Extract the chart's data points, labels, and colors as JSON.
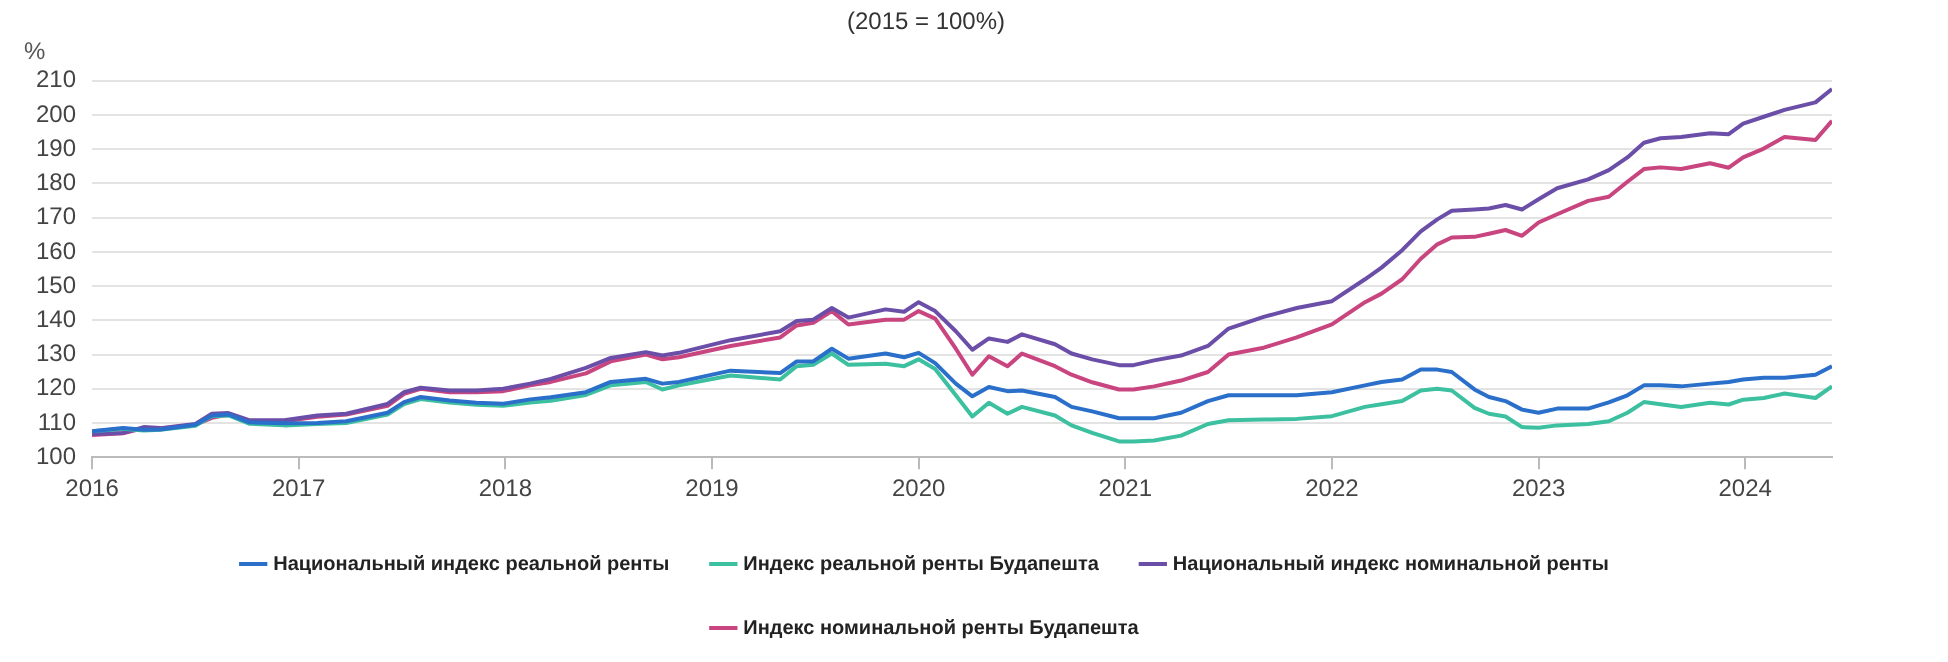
{
  "chart_data": {
    "type": "line",
    "title": "(2015 = 100%)",
    "ylabel": "%",
    "x": [
      2016.0,
      2016.15,
      2016.25,
      2016.33,
      2016.5,
      2016.58,
      2016.66,
      2016.76,
      2016.93,
      2017.09,
      2017.23,
      2017.43,
      2017.51,
      2017.59,
      2017.73,
      2017.86,
      2017.99,
      2018.12,
      2018.22,
      2018.39,
      2018.51,
      2018.68,
      2018.76,
      2018.84,
      2019.09,
      2019.33,
      2019.41,
      2019.49,
      2019.58,
      2019.66,
      2019.84,
      2019.93,
      2020.0,
      2020.08,
      2020.18,
      2020.26,
      2020.34,
      2020.43,
      2020.5,
      2020.66,
      2020.74,
      2020.84,
      2020.97,
      2021.04,
      2021.14,
      2021.27,
      2021.4,
      2021.5,
      2021.67,
      2021.83,
      2022.0,
      2022.16,
      2022.24,
      2022.34,
      2022.43,
      2022.51,
      2022.58,
      2022.69,
      2022.76,
      2022.84,
      2022.92,
      2023.0,
      2023.09,
      2023.24,
      2023.34,
      2023.43,
      2023.51,
      2023.59,
      2023.69,
      2023.83,
      2023.92,
      2023.99,
      2024.09,
      2024.19,
      2024.34,
      2024.42
    ],
    "series": [
      {
        "name": "Национальный индекс реальной ренты",
        "color": "#2a6fc9",
        "values": [
          107.6,
          108.5,
          108,
          108.1,
          109.5,
          112.2,
          112.5,
          110.2,
          109.9,
          110,
          110.5,
          113,
          116.1,
          117.6,
          116.6,
          115.9,
          115.6,
          116.9,
          117.5,
          119,
          122,
          122.9,
          121.5,
          122,
          125.3,
          124.6,
          128,
          128,
          131.7,
          128.8,
          130.3,
          129.2,
          130.5,
          127.5,
          121.5,
          117.8,
          120.5,
          119.3,
          119.5,
          117.6,
          114.7,
          113.4,
          111.4,
          111.4,
          111.4,
          113,
          116.4,
          118.1,
          118.1,
          118.1,
          119,
          121,
          122,
          122.7,
          125.6,
          125.6,
          124.9,
          119.8,
          117.6,
          116.4,
          113.9,
          113,
          114.2,
          114.2,
          116,
          118.1,
          121,
          121,
          120.7,
          121.5,
          122,
          122.7,
          123.2,
          123.2,
          124.1,
          126.6
        ]
      },
      {
        "name": "Индекс реальной ренты Будапешта",
        "color": "#3cc0a0",
        "values": [
          107.6,
          108.3,
          107.8,
          108,
          109.2,
          112,
          112.2,
          109.8,
          109.3,
          109.7,
          110,
          112.5,
          115.5,
          117,
          116,
          115.3,
          115,
          116,
          116.5,
          118.2,
          121,
          122,
          119.8,
          121,
          123.9,
          122.7,
          126.6,
          127,
          130.3,
          127,
          127.3,
          126.6,
          128.6,
          125.8,
          118.1,
          111.9,
          115.9,
          112.7,
          114.7,
          112.2,
          109.3,
          107.1,
          104.6,
          104.6,
          104.9,
          106.3,
          109.7,
          110.8,
          111,
          111.2,
          112,
          114.7,
          115.5,
          116.4,
          119.5,
          120,
          119.5,
          114.4,
          112.7,
          111.9,
          108.8,
          108.6,
          109.3,
          109.7,
          110.5,
          113,
          116.1,
          115.5,
          114.7,
          115.9,
          115.4,
          116.8,
          117.3,
          118.6,
          117.3,
          120.7
        ]
      },
      {
        "name": "Национальный индекс номинальной ренты",
        "color": "#6b4ea8",
        "values": [
          106.8,
          107.1,
          108.8,
          108.5,
          109.7,
          112.7,
          112.9,
          110.8,
          110.8,
          112.2,
          112.7,
          115.6,
          119,
          120.3,
          119.5,
          119.5,
          120,
          121.5,
          122.9,
          126.1,
          129,
          130.7,
          129.7,
          130.5,
          134.2,
          136.8,
          139.8,
          140.2,
          143.6,
          140.8,
          143.2,
          142.5,
          145.3,
          142.7,
          136.8,
          131.4,
          134.7,
          133.7,
          135.9,
          133,
          130.3,
          128.6,
          126.9,
          126.9,
          128.3,
          129.7,
          132.5,
          137.6,
          141,
          143.6,
          145.6,
          152,
          155.4,
          160.5,
          166,
          169.5,
          172,
          172.4,
          172.7,
          173.7,
          172.4,
          175.4,
          178.6,
          181.2,
          183.9,
          187.6,
          191.9,
          193.2,
          193.6,
          194.7,
          194.4,
          197.5,
          199.5,
          201.5,
          203.7,
          207.6
        ]
      },
      {
        "name": "Индекс номинальной ренты Будапешта",
        "color": "#c8457f",
        "values": [
          106.5,
          107,
          108.5,
          108.3,
          109.5,
          111.5,
          112.5,
          110.5,
          110.5,
          111.8,
          112.5,
          115,
          118.5,
          120,
          119,
          119,
          119.3,
          121,
          122,
          124.5,
          128,
          130,
          128.6,
          129.2,
          132.5,
          135,
          138.5,
          139.3,
          142.7,
          138.8,
          140.2,
          140.2,
          142.7,
          140.5,
          131.7,
          124.1,
          129.5,
          126.6,
          130.3,
          126.6,
          124.1,
          121.9,
          119.8,
          119.8,
          120.7,
          122.4,
          124.9,
          130,
          132,
          135,
          138.8,
          145.3,
          147.8,
          152,
          158,
          162.2,
          164.2,
          164.4,
          165.3,
          166.4,
          164.7,
          168.6,
          171,
          174.9,
          176.1,
          180.5,
          184.2,
          184.7,
          184.2,
          185.9,
          184.6,
          187.6,
          190.2,
          193.6,
          192.7,
          198.3
        ]
      }
    ],
    "xlim": [
      2016,
      2024.42
    ],
    "xticks": [
      2016,
      2017,
      2018,
      2019,
      2020,
      2021,
      2022,
      2023,
      2024
    ],
    "ylim": [
      100,
      210
    ],
    "yticks": [
      100,
      110,
      120,
      130,
      140,
      150,
      160,
      170,
      180,
      190,
      200,
      210
    ],
    "grid": "y",
    "legend": "bottom",
    "marker": "none",
    "line_style": "solid"
  }
}
